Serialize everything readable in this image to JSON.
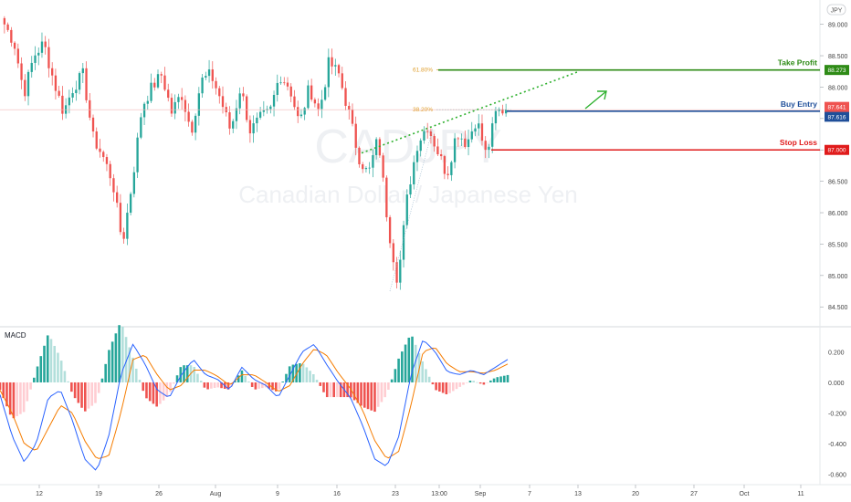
{
  "symbol_badge": "JPY",
  "watermark": {
    "symbol": "CADJPY",
    "name": "Canadian Dollar / Japanese Yen"
  },
  "macd_label": "MACD",
  "colors": {
    "up": "#26a69a",
    "down": "#ef5350",
    "take_profit": "#2e8b16",
    "buy_entry": "#1f4e99",
    "stop_loss": "#e01b1b",
    "fib": "#e0a030",
    "trend": "#2fb12f",
    "macd_line": "#2962ff",
    "signal_line": "#f57c00"
  },
  "chart_data": [
    {
      "type": "candlestick",
      "title": "",
      "x_ticks": [
        "12",
        "19",
        "26",
        "Aug",
        "9",
        "16",
        "23",
        "13:00",
        "Sep",
        "7",
        "13",
        "20",
        "27",
        "Oct",
        "11"
      ],
      "y_ticks": [
        "89.000",
        "88.500",
        "88.000",
        "87.500",
        "87.000",
        "86.500",
        "86.000",
        "85.500",
        "85.000",
        "84.500"
      ],
      "ylim": [
        84.3,
        89.3
      ],
      "anchors": [
        89.0,
        88.7,
        87.9,
        88.5,
        88.7,
        88.1,
        87.6,
        88.0,
        88.2,
        87.2,
        86.9,
        86.5,
        85.5,
        86.5,
        87.7,
        88.0,
        88.2,
        87.6,
        87.9,
        87.3,
        88.1,
        88.2,
        87.8,
        87.3,
        88.0,
        87.3,
        87.5,
        87.6,
        88.2,
        88.0,
        87.4,
        88.0,
        87.6,
        88.4,
        88.2,
        87.6,
        86.9,
        86.6,
        87.2,
        85.8,
        84.9,
        86.3,
        87.1,
        87.4,
        87.0,
        86.6,
        87.3,
        87.1,
        87.5,
        86.9,
        87.6,
        87.65
      ],
      "levels": [
        {
          "name": "Take Profit",
          "label": "Take Profit",
          "price": 88.273,
          "price_label": "88.273"
        },
        {
          "name": "Buy Entry",
          "label": "Buy Entry",
          "price": 87.616,
          "price_label": "87.616"
        },
        {
          "name": "Stop Loss",
          "label": "Stop Loss",
          "price": 87.0,
          "price_label": "87.000"
        }
      ],
      "last_price": {
        "price": 87.641,
        "label": "87.641"
      },
      "fibonacci": [
        {
          "label": "61.80%",
          "price": 88.273
        },
        {
          "label": "38.20%",
          "price": 87.641
        }
      ]
    },
    {
      "type": "bar",
      "title": "MACD",
      "y_ticks": [
        "0.200",
        "0.000",
        "-0.200",
        "-0.400",
        "-0.600"
      ],
      "ylim": [
        -0.65,
        0.28
      ],
      "macd_anchors": [
        -0.08,
        -0.35,
        -0.52,
        -0.4,
        -0.1,
        -0.05,
        -0.25,
        -0.5,
        -0.58,
        -0.35,
        0.05,
        0.25,
        0.12,
        -0.05,
        -0.1,
        0.05,
        0.15,
        0.05,
        0.02,
        -0.05,
        0.1,
        0.02,
        -0.02,
        -0.1,
        0.05,
        0.2,
        0.25,
        0.12,
        0.0,
        -0.1,
        -0.28,
        -0.5,
        -0.55,
        -0.35,
        0.05,
        0.28,
        0.2,
        0.07,
        0.05,
        0.08,
        0.05,
        0.1,
        0.15
      ],
      "signal_anchors": [
        -0.05,
        -0.2,
        -0.4,
        -0.45,
        -0.3,
        -0.15,
        -0.2,
        -0.38,
        -0.5,
        -0.48,
        -0.2,
        0.15,
        0.18,
        0.05,
        -0.05,
        -0.02,
        0.08,
        0.08,
        0.04,
        -0.02,
        0.05,
        0.05,
        0.0,
        -0.06,
        -0.02,
        0.12,
        0.22,
        0.18,
        0.06,
        -0.04,
        -0.18,
        -0.38,
        -0.5,
        -0.45,
        -0.15,
        0.2,
        0.23,
        0.12,
        0.07,
        0.07,
        0.06,
        0.08,
        0.12
      ]
    }
  ]
}
